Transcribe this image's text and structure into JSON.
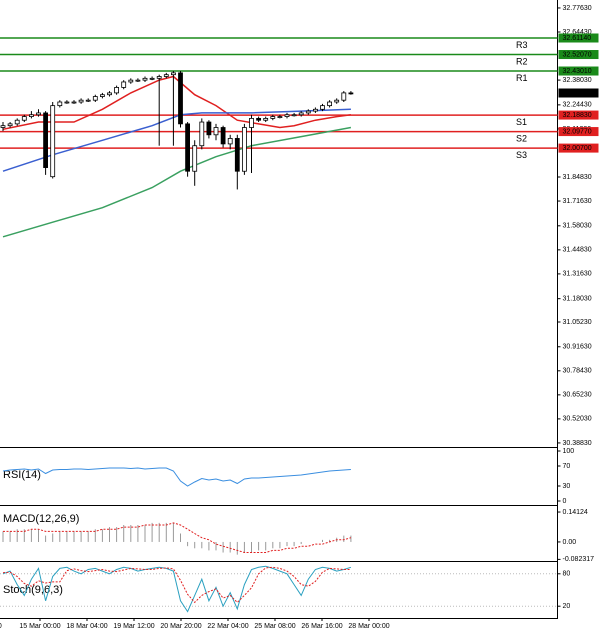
{
  "chart_data": {
    "type": "candlestick",
    "ylim": [
      30.366,
      32.82
    ],
    "yticks": [
      {
        "value": 32.7763,
        "label": "32.77630"
      },
      {
        "value": 32.6443,
        "label": "32.64430"
      },
      {
        "value": 32.3803,
        "label": "32.38030"
      },
      {
        "value": 32.2443,
        "label": "32.24430"
      },
      {
        "value": 32.1123,
        "label": "32.11230"
      },
      {
        "value": 31.8483,
        "label": "31.84830"
      },
      {
        "value": 31.7163,
        "label": "31.71630"
      },
      {
        "value": 31.5803,
        "label": "31.58030"
      },
      {
        "value": 31.4483,
        "label": "31.44830"
      },
      {
        "value": 31.3163,
        "label": "31.31630"
      },
      {
        "value": 31.1803,
        "label": "31.18030"
      },
      {
        "value": 31.0523,
        "label": "31.05230"
      },
      {
        "value": 30.9163,
        "label": "30.91630"
      },
      {
        "value": 30.7843,
        "label": "30.78430"
      },
      {
        "value": 30.6523,
        "label": "30.65230"
      },
      {
        "value": 30.5203,
        "label": "30.52030"
      },
      {
        "value": 30.3883,
        "label": "30.38830"
      }
    ],
    "time_labels": [
      "16:00",
      "15 Mar 00:00",
      "18 Mar 04:00",
      "19 Mar 12:00",
      "20 Mar 20:00",
      "22 Mar 04:00",
      "25 Mar 08:00",
      "26 Mar 16:00",
      "28 Mar 00:00"
    ],
    "candles": [
      [
        32.12,
        32.15,
        32.1,
        32.13
      ],
      [
        32.13,
        32.15,
        32.12,
        32.14
      ],
      [
        32.14,
        32.17,
        32.13,
        32.16
      ],
      [
        32.16,
        32.19,
        32.15,
        32.18
      ],
      [
        32.18,
        32.21,
        32.17,
        32.19
      ],
      [
        32.19,
        32.22,
        32.18,
        32.2
      ],
      [
        32.2,
        32.21,
        31.86,
        31.9
      ],
      [
        31.85,
        32.26,
        31.84,
        32.24
      ],
      [
        32.24,
        32.27,
        32.23,
        32.26
      ],
      [
        32.26,
        32.27,
        32.25,
        32.26
      ],
      [
        32.26,
        32.27,
        32.25,
        32.26
      ],
      [
        32.26,
        32.28,
        32.25,
        32.27
      ],
      [
        32.27,
        32.28,
        32.26,
        32.27
      ],
      [
        32.27,
        32.3,
        32.26,
        32.29
      ],
      [
        32.29,
        32.31,
        32.28,
        32.3
      ],
      [
        32.3,
        32.32,
        32.29,
        32.31
      ],
      [
        32.31,
        32.35,
        32.3,
        32.34
      ],
      [
        32.34,
        32.38,
        32.33,
        32.37
      ],
      [
        32.37,
        32.39,
        32.36,
        32.38
      ],
      [
        32.38,
        32.39,
        32.37,
        32.38
      ],
      [
        32.38,
        32.4,
        32.37,
        32.39
      ],
      [
        32.39,
        32.4,
        32.38,
        32.39
      ],
      [
        32.39,
        32.41,
        32.02,
        32.4
      ],
      [
        32.4,
        32.42,
        32.39,
        32.41
      ],
      [
        32.41,
        32.43,
        32.02,
        32.42
      ],
      [
        32.42,
        32.43,
        32.12,
        32.14
      ],
      [
        32.14,
        32.15,
        31.85,
        31.88
      ],
      [
        31.88,
        32.05,
        31.8,
        32.02
      ],
      [
        32.02,
        32.17,
        32.0,
        32.15
      ],
      [
        32.15,
        32.16,
        32.06,
        32.08
      ],
      [
        32.08,
        32.14,
        32.05,
        32.12
      ],
      [
        32.12,
        32.13,
        32.01,
        32.03
      ],
      [
        32.03,
        32.08,
        32.0,
        32.06
      ],
      [
        32.06,
        32.08,
        31.78,
        31.88
      ],
      [
        31.88,
        32.14,
        31.86,
        32.12
      ],
      [
        32.12,
        32.19,
        31.87,
        32.17
      ],
      [
        32.17,
        32.18,
        32.15,
        32.16
      ],
      [
        32.16,
        32.18,
        32.15,
        32.17
      ],
      [
        32.17,
        32.19,
        32.16,
        32.18
      ],
      [
        32.18,
        32.19,
        32.17,
        32.18
      ],
      [
        32.18,
        32.2,
        32.17,
        32.19
      ],
      [
        32.19,
        32.2,
        32.18,
        32.19
      ],
      [
        32.19,
        32.21,
        32.18,
        32.2
      ],
      [
        32.2,
        32.22,
        32.19,
        32.21
      ],
      [
        32.21,
        32.23,
        32.2,
        32.22
      ],
      [
        32.22,
        32.25,
        32.21,
        32.24
      ],
      [
        32.24,
        32.27,
        32.23,
        32.26
      ],
      [
        32.26,
        32.28,
        32.25,
        32.27
      ],
      [
        32.27,
        32.32,
        32.26,
        32.31
      ],
      [
        32.31,
        32.32,
        32.3,
        32.30944
      ]
    ],
    "overlays": [
      {
        "color": "#e02020",
        "index": [
          0,
          5,
          10,
          14,
          18,
          22,
          24,
          27,
          30,
          33,
          36,
          39,
          41,
          44,
          47,
          49
        ],
        "values": [
          32.11,
          32.15,
          32.15,
          32.22,
          32.31,
          32.38,
          32.4,
          32.3,
          32.24,
          32.16,
          32.14,
          32.12,
          32.13,
          32.16,
          32.18,
          32.19
        ]
      },
      {
        "color": "#3a5fd0",
        "index": [
          0,
          7,
          14,
          21,
          25,
          28,
          35,
          42,
          49
        ],
        "values": [
          31.88,
          31.97,
          32.05,
          32.13,
          32.19,
          32.2,
          32.2,
          32.21,
          32.22
        ]
      },
      {
        "color": "#3aa060",
        "index": [
          0,
          7,
          14,
          21,
          25,
          30,
          35,
          42,
          49
        ],
        "values": [
          31.52,
          31.6,
          31.68,
          31.79,
          31.88,
          31.96,
          32.02,
          32.07,
          32.12
        ]
      }
    ],
    "levels": [
      {
        "name": "R3",
        "value": 32.6114,
        "label": "32.61140",
        "color": "#1a8a1a"
      },
      {
        "name": "R2",
        "value": 32.5207,
        "label": "32.52070",
        "color": "#1a8a1a"
      },
      {
        "name": "R1",
        "value": 32.4301,
        "label": "32.43010",
        "color": "#1a8a1a"
      },
      {
        "name": "S1",
        "value": 32.1883,
        "label": "32.18830",
        "color": "#e02020"
      },
      {
        "name": "S2",
        "value": 32.0977,
        "label": "32.09770",
        "color": "#e02020"
      },
      {
        "name": "S3",
        "value": 32.007,
        "label": "32.00700",
        "color": "#e02020"
      }
    ],
    "current_price": {
      "value": 32.30944,
      "label": "32.30944"
    },
    "rsi": {
      "title": "RSI(14)",
      "color": "#3a8ee0",
      "ylim": [
        0,
        100
      ],
      "yticks": [
        100,
        70,
        30,
        0
      ],
      "values": [
        60,
        62,
        63,
        64,
        62,
        64,
        55,
        62,
        63,
        63,
        64,
        64,
        63,
        64,
        65,
        66,
        66,
        66,
        65,
        66,
        64,
        65,
        66,
        66,
        60,
        40,
        30,
        38,
        45,
        42,
        44,
        40,
        42,
        35,
        44,
        46,
        46,
        47,
        48,
        49,
        50,
        51,
        52,
        54,
        56,
        58,
        60,
        61,
        62,
        63
      ]
    },
    "macd": {
      "title": "MACD(12,26,9)",
      "ylim": [
        -0.09,
        0.165
      ],
      "yticks": [
        0.14124,
        {
          "value": 0,
          "label": "0.00"
        },
        -0.082317
      ],
      "histogram": [
        0.05,
        0.05,
        0.06,
        0.06,
        0.06,
        0.06,
        0.03,
        0.04,
        0.05,
        0.05,
        0.05,
        0.05,
        0.05,
        0.06,
        0.06,
        0.07,
        0.07,
        0.08,
        0.08,
        0.08,
        0.08,
        0.09,
        0.09,
        0.09,
        0.09,
        0.04,
        -0.02,
        -0.03,
        -0.03,
        -0.04,
        -0.04,
        -0.05,
        -0.05,
        -0.06,
        -0.05,
        -0.05,
        -0.04,
        -0.04,
        -0.03,
        -0.03,
        -0.02,
        -0.02,
        -0.01,
        0.0,
        0.0,
        0.01,
        0.01,
        0.02,
        0.03,
        0.03
      ],
      "signal": [
        0.05,
        0.05,
        0.05,
        0.05,
        0.06,
        0.06,
        0.05,
        0.05,
        0.05,
        0.05,
        0.05,
        0.05,
        0.05,
        0.05,
        0.06,
        0.06,
        0.06,
        0.07,
        0.07,
        0.07,
        0.08,
        0.08,
        0.08,
        0.08,
        0.09,
        0.08,
        0.06,
        0.04,
        0.02,
        0.01,
        -0.01,
        -0.02,
        -0.03,
        -0.04,
        -0.05,
        -0.05,
        -0.05,
        -0.05,
        -0.04,
        -0.04,
        -0.03,
        -0.03,
        -0.02,
        -0.02,
        -0.01,
        -0.01,
        0.0,
        0.01,
        0.01,
        0.02
      ],
      "histogram_color": "#999999",
      "signal_color": "#e02020"
    },
    "stoch": {
      "title": "Stoch(9,6,3)",
      "ylim": [
        0,
        100
      ],
      "yticks": [
        80,
        20
      ],
      "k": [
        80,
        85,
        60,
        40,
        70,
        90,
        30,
        75,
        90,
        92,
        85,
        80,
        88,
        90,
        85,
        80,
        88,
        92,
        90,
        85,
        88,
        90,
        92,
        90,
        85,
        30,
        10,
        40,
        70,
        30,
        55,
        20,
        45,
        15,
        60,
        88,
        92,
        94,
        90,
        85,
        80,
        60,
        40,
        70,
        88,
        92,
        90,
        85,
        88,
        92
      ],
      "d": [
        82,
        83,
        75,
        62,
        57,
        67,
        63,
        65,
        65,
        86,
        89,
        86,
        84,
        86,
        88,
        85,
        84,
        87,
        90,
        89,
        88,
        88,
        90,
        91,
        89,
        68,
        42,
        27,
        40,
        47,
        52,
        35,
        40,
        27,
        40,
        54,
        80,
        91,
        92,
        90,
        85,
        75,
        60,
        57,
        66,
        83,
        90,
        89,
        88,
        88
      ],
      "k_color": "#2aa0c0",
      "d_color": "#e02020"
    }
  }
}
